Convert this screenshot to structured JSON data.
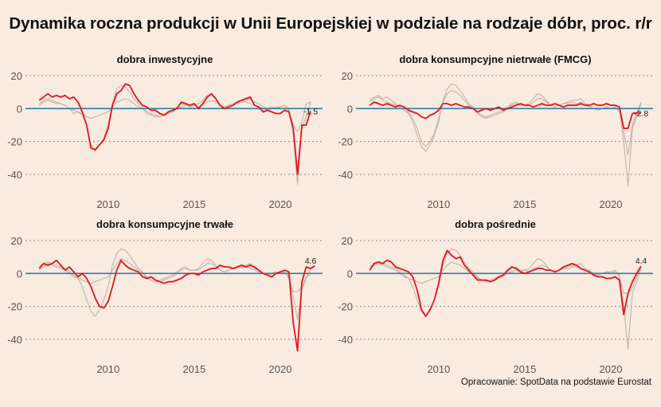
{
  "title": "Dynamika roczna produkcji w Unii Europejskiej w podziale na rodzaje dóbr, proc. r/r",
  "source": "Opracowanie: SpotData na podstawie Eurostat",
  "colors": {
    "background": "#faebe0",
    "highlight": "#e8131b",
    "context": "#bdb5ae",
    "zero_line": "#2b7fa3",
    "grid": "#8a8580"
  },
  "chart_data": [
    {
      "type": "line",
      "title": "dobra inwestycyjne",
      "xlabel": "",
      "ylabel": "",
      "xlim": [
        2005.2,
        2022.45
      ],
      "ylim": [
        -48,
        22
      ],
      "yticks": [
        20,
        0,
        -20,
        -40
      ],
      "ytick_labels": [
        "20",
        "0",
        "-20",
        "-40"
      ],
      "xticks": [
        2010,
        2015,
        2020
      ],
      "xtick_labels": [
        "2010",
        "2015",
        "2020"
      ],
      "grid": true,
      "end_label": "-1.5",
      "x_start": 2006.0,
      "x_step": 0.25,
      "series_highlight": [
        5,
        7,
        9,
        7,
        8,
        7,
        8,
        6,
        7,
        4,
        -2,
        -10,
        -24,
        -25,
        -22,
        -19,
        -12,
        2,
        9,
        11,
        15,
        14,
        9,
        5,
        2,
        1,
        -1,
        -1,
        -3,
        -4,
        -2,
        -1,
        0,
        4,
        3,
        2,
        3,
        0,
        3,
        7,
        9,
        6,
        2,
        0,
        1,
        2,
        4,
        5,
        6,
        7,
        2,
        1,
        -2,
        -1,
        -2,
        -3,
        -3,
        -1,
        -2,
        -12,
        -40,
        -10,
        -10,
        -1.5
      ],
      "series_context": [
        [
          3,
          5,
          6,
          5,
          4,
          3,
          2,
          0,
          -1,
          -2,
          -4,
          -10,
          -22,
          -26,
          -22,
          -18,
          -10,
          3,
          12,
          14,
          13,
          10,
          6,
          3,
          1,
          -2,
          -3,
          -4,
          -5,
          -4,
          -3,
          -2,
          1,
          3,
          2,
          1,
          2,
          3,
          5,
          8,
          8,
          6,
          2,
          1,
          2,
          3,
          4,
          5,
          5,
          6,
          4,
          3,
          1,
          0,
          1,
          0,
          1,
          2,
          0,
          -15,
          -46,
          -12,
          -5,
          4
        ],
        [
          2,
          4,
          5,
          4,
          3,
          3,
          2,
          0,
          -3,
          -2,
          -3,
          -5,
          -6,
          -5,
          -4,
          -3,
          -2,
          1,
          4,
          5,
          6,
          5,
          3,
          1,
          0,
          -3,
          -4,
          -5,
          -5,
          -4,
          -3,
          -2,
          0,
          1,
          2,
          1,
          2,
          1,
          3,
          4,
          5,
          4,
          2,
          1,
          2,
          3,
          3,
          4,
          4,
          3,
          2,
          1,
          0,
          -1,
          0,
          1,
          1,
          2,
          -1,
          -10,
          -14,
          -8,
          3,
          4
        ]
      ]
    },
    {
      "type": "line",
      "title": "dobra konsumpcyjne nietrwałe (FMCG)",
      "xlabel": "",
      "ylabel": "",
      "xlim": [
        2005.2,
        2022.45
      ],
      "ylim": [
        -48,
        22
      ],
      "yticks": [
        20,
        0,
        -20,
        -40
      ],
      "ytick_labels": [
        "20",
        "0",
        "-20",
        "-40"
      ],
      "xticks": [
        2010,
        2015,
        2020
      ],
      "xtick_labels": [
        "2010",
        "2015",
        "2020"
      ],
      "grid": true,
      "end_label": "-2.8",
      "x_start": 2006.0,
      "x_step": 0.25,
      "series_highlight": [
        2,
        4,
        3,
        2,
        3,
        2,
        1,
        2,
        1,
        -1,
        -2,
        -3,
        -5,
        -6,
        -4,
        -3,
        -1,
        3,
        3,
        2,
        3,
        2,
        1,
        1,
        0,
        -2,
        -1,
        0,
        -1,
        0,
        1,
        -1,
        0,
        1,
        2,
        3,
        2,
        2,
        1,
        2,
        3,
        2,
        2,
        3,
        2,
        1,
        2,
        2,
        2,
        3,
        2,
        2,
        3,
        2,
        2,
        3,
        2,
        2,
        1,
        -12,
        -12,
        -3,
        -2.5,
        -2.8
      ],
      "series_context": [
        [
          5,
          7,
          8,
          6,
          7,
          5,
          3,
          1,
          -1,
          -3,
          -8,
          -16,
          -23,
          -26,
          -22,
          -16,
          -8,
          5,
          12,
          15,
          14,
          11,
          7,
          3,
          1,
          -2,
          -4,
          -5,
          -4,
          -3,
          -2,
          -1,
          1,
          3,
          4,
          2,
          2,
          3,
          6,
          9,
          8,
          5,
          2,
          1,
          2,
          3,
          4,
          5,
          5,
          6,
          3,
          2,
          0,
          -1,
          0,
          1,
          0,
          1,
          -1,
          -20,
          -47,
          -12,
          -5,
          3
        ],
        [
          4,
          6,
          7,
          5,
          4,
          3,
          2,
          1,
          -1,
          -2,
          -6,
          -12,
          -20,
          -23,
          -20,
          -15,
          -6,
          4,
          9,
          11,
          10,
          8,
          5,
          2,
          0,
          -3,
          -5,
          -6,
          -5,
          -4,
          -3,
          -2,
          1,
          2,
          3,
          2,
          2,
          2,
          4,
          6,
          6,
          4,
          2,
          1,
          2,
          3,
          3,
          4,
          3,
          4,
          2,
          1,
          0,
          -1,
          0,
          1,
          0,
          1,
          -2,
          -14,
          -28,
          -10,
          -3,
          4
        ]
      ]
    },
    {
      "type": "line",
      "title": "dobra konsumpcyjne trwałe",
      "xlabel": "",
      "ylabel": "",
      "xlim": [
        2005.2,
        2022.45
      ],
      "ylim": [
        -48,
        22
      ],
      "yticks": [
        20,
        0,
        -20,
        -40
      ],
      "ytick_labels": [
        "20",
        "0",
        "-20",
        "-40"
      ],
      "xticks": [
        2010,
        2015,
        2020
      ],
      "xtick_labels": [
        "2010",
        "2015",
        "2020"
      ],
      "grid": true,
      "end_label": "4.6",
      "x_start": 2006.0,
      "x_step": 0.25,
      "series_highlight": [
        3,
        6,
        5,
        6,
        8,
        5,
        2,
        4,
        1,
        -2,
        0,
        -3,
        -8,
        -15,
        -20,
        -21,
        -17,
        -8,
        2,
        8,
        5,
        3,
        2,
        1,
        -2,
        -3,
        -2,
        -4,
        -5,
        -6,
        -5,
        -5,
        -4,
        -3,
        -1,
        0,
        0,
        -1,
        1,
        2,
        3,
        3,
        5,
        4,
        4,
        3,
        4,
        5,
        4,
        5,
        4,
        2,
        0,
        -1,
        -2,
        0,
        1,
        2,
        1,
        -30,
        -47,
        -5,
        4,
        3,
        4.6
      ],
      "series_context": [
        [
          4,
          6,
          7,
          6,
          5,
          4,
          3,
          1,
          -1,
          -3,
          -8,
          -16,
          -23,
          -26,
          -22,
          -16,
          -8,
          5,
          12,
          15,
          14,
          11,
          7,
          3,
          1,
          -2,
          -4,
          -5,
          -4,
          -3,
          -2,
          -1,
          1,
          3,
          4,
          2,
          2,
          3,
          6,
          9,
          8,
          5,
          2,
          1,
          2,
          3,
          4,
          5,
          5,
          6,
          3,
          2,
          0,
          -1,
          0,
          1,
          0,
          1,
          -2,
          -14,
          -28,
          -10,
          -3,
          3
        ],
        [
          2,
          4,
          6,
          5,
          4,
          3,
          2,
          0,
          -2,
          -3,
          -4,
          -5,
          -6,
          -5,
          -4,
          -3,
          -2,
          2,
          6,
          9,
          8,
          6,
          4,
          2,
          0,
          -3,
          -4,
          -5,
          -5,
          -4,
          -3,
          -2,
          0,
          2,
          3,
          2,
          2,
          2,
          4,
          6,
          6,
          4,
          2,
          1,
          2,
          3,
          3,
          4,
          4,
          3,
          2,
          1,
          0,
          -1,
          0,
          1,
          0,
          1,
          -3,
          -11,
          -11,
          -8,
          -2,
          -1
        ]
      ]
    },
    {
      "type": "line",
      "title": "dobra pośrednie",
      "xlabel": "",
      "ylabel": "",
      "xlim": [
        2005.2,
        2022.45
      ],
      "ylim": [
        -48,
        22
      ],
      "yticks": [
        20,
        0,
        -20,
        -40
      ],
      "ytick_labels": [
        "20",
        "0",
        "-20",
        "-40"
      ],
      "xticks": [
        2010,
        2015,
        2020
      ],
      "xtick_labels": [
        "2010",
        "2015",
        "2020"
      ],
      "grid": true,
      "end_label": "4.4",
      "x_start": 2006.0,
      "x_step": 0.25,
      "series_highlight": [
        2,
        6,
        7,
        6,
        8,
        7,
        4,
        3,
        2,
        1,
        -2,
        -10,
        -22,
        -26,
        -22,
        -16,
        -6,
        8,
        14,
        11,
        9,
        10,
        5,
        2,
        -1,
        -4,
        -4,
        -4,
        -5,
        -4,
        -2,
        -1,
        2,
        4,
        3,
        1,
        0,
        1,
        2,
        3,
        3,
        2,
        2,
        1,
        2,
        4,
        5,
        6,
        5,
        3,
        2,
        1,
        -1,
        -2,
        -2,
        -3,
        -3,
        -2,
        -4,
        -25,
        -12,
        -5,
        0,
        4.4
      ],
      "series_context": [
        [
          4,
          6,
          7,
          6,
          5,
          4,
          3,
          1,
          -1,
          -3,
          -8,
          -16,
          -23,
          -26,
          -22,
          -16,
          -8,
          5,
          12,
          15,
          14,
          11,
          7,
          3,
          1,
          -2,
          -4,
          -5,
          -4,
          -3,
          -2,
          -1,
          1,
          3,
          4,
          2,
          2,
          3,
          6,
          9,
          8,
          5,
          2,
          1,
          2,
          3,
          4,
          5,
          5,
          6,
          3,
          2,
          0,
          -1,
          0,
          1,
          0,
          1,
          -1,
          -20,
          -46,
          -12,
          -5,
          3
        ],
        [
          3,
          5,
          6,
          5,
          4,
          3,
          2,
          0,
          -2,
          -3,
          -4,
          -5,
          -6,
          -5,
          -4,
          -3,
          -2,
          2,
          5,
          7,
          6,
          5,
          3,
          1,
          0,
          -3,
          -4,
          -5,
          -5,
          -4,
          -3,
          -2,
          0,
          1,
          2,
          1,
          2,
          1,
          3,
          4,
          5,
          4,
          2,
          1,
          2,
          3,
          3,
          4,
          4,
          3,
          2,
          1,
          0,
          -1,
          0,
          1,
          1,
          2,
          -2,
          -12,
          -12,
          -9,
          -2,
          4
        ]
      ]
    }
  ]
}
